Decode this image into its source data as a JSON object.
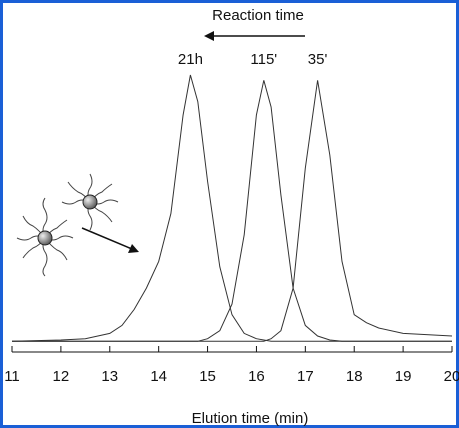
{
  "chart_data": {
    "type": "line",
    "title": "Reaction time",
    "x_label": "Elution time (min)",
    "x": [
      11,
      12,
      12.5,
      13,
      13.25,
      13.5,
      13.75,
      14,
      14.25,
      14.5,
      14.65,
      14.8,
      15,
      15.25,
      15.5,
      15.75,
      16,
      16.15,
      16.3,
      16.5,
      16.75,
      17,
      17.25,
      17.5,
      17.75,
      18,
      18.25,
      18.5,
      19,
      20
    ],
    "series": [
      {
        "name": "21h",
        "color": "#333333",
        "values": [
          0,
          0.005,
          0.01,
          0.03,
          0.06,
          0.12,
          0.2,
          0.3,
          0.48,
          0.85,
          1,
          0.9,
          0.6,
          0.28,
          0.1,
          0.03,
          0.01,
          0.005,
          0,
          0,
          0,
          0,
          0,
          0,
          0,
          0,
          0,
          0,
          0,
          0
        ]
      },
      {
        "name": "115'",
        "color": "#333333",
        "values": [
          0,
          0,
          0,
          0,
          0,
          0,
          0,
          0,
          0,
          0,
          0,
          0,
          0.01,
          0.04,
          0.14,
          0.4,
          0.85,
          0.98,
          0.88,
          0.55,
          0.2,
          0.06,
          0.02,
          0.005,
          0,
          0,
          0,
          0,
          0,
          0
        ]
      },
      {
        "name": "35'",
        "color": "#333333",
        "values": [
          0,
          0,
          0,
          0,
          0,
          0,
          0,
          0,
          0,
          0,
          0,
          0,
          0,
          0,
          0,
          0,
          0,
          0,
          0.01,
          0.04,
          0.2,
          0.65,
          0.98,
          0.7,
          0.3,
          0.1,
          0.07,
          0.05,
          0.03,
          0.02
        ]
      }
    ],
    "xlim": [
      11,
      20
    ],
    "ylim": [
      -0.04,
      1
    ],
    "xticks": [
      11,
      12,
      13,
      14,
      15,
      16,
      17,
      18,
      19,
      20
    ]
  }
}
